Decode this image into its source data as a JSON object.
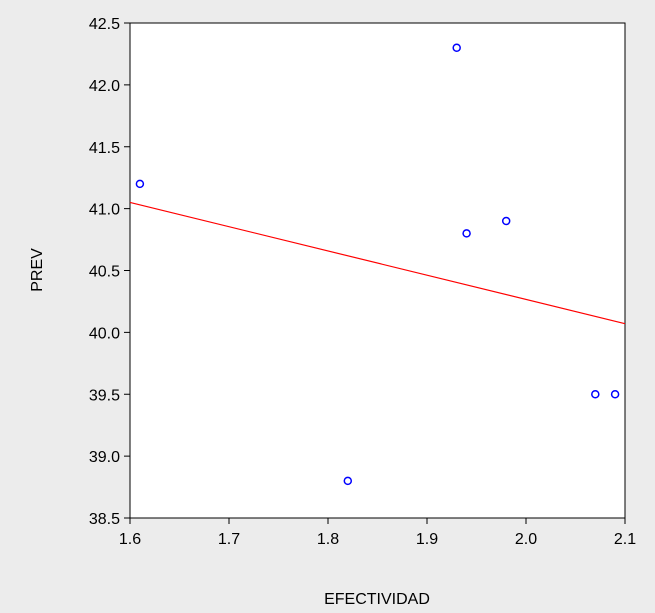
{
  "chart_data": {
    "type": "scatter",
    "xlabel": "EFECTIVIDAD",
    "ylabel": "PREV",
    "xlim": [
      1.6,
      2.1
    ],
    "ylim": [
      38.5,
      42.5
    ],
    "x_ticks": [
      "1.6",
      "1.7",
      "1.8",
      "1.9",
      "2.0",
      "2.1"
    ],
    "y_ticks": [
      "38.5",
      "39.0",
      "39.5",
      "40.0",
      "40.5",
      "41.0",
      "41.5",
      "42.0",
      "42.5"
    ],
    "points": [
      {
        "x": 1.61,
        "y": 41.2
      },
      {
        "x": 1.82,
        "y": 38.8
      },
      {
        "x": 1.93,
        "y": 42.3
      },
      {
        "x": 1.94,
        "y": 40.8
      },
      {
        "x": 1.98,
        "y": 40.9
      },
      {
        "x": 2.07,
        "y": 39.5
      },
      {
        "x": 2.09,
        "y": 39.5
      }
    ],
    "fit_line": {
      "x": [
        1.6,
        2.1
      ],
      "y": [
        41.05,
        40.07
      ]
    },
    "grid": false,
    "legend": "none",
    "colors": {
      "points": "#0000ff",
      "fit_line": "#ff0000",
      "background": "#ececec",
      "plot_area": "#ffffff"
    }
  }
}
